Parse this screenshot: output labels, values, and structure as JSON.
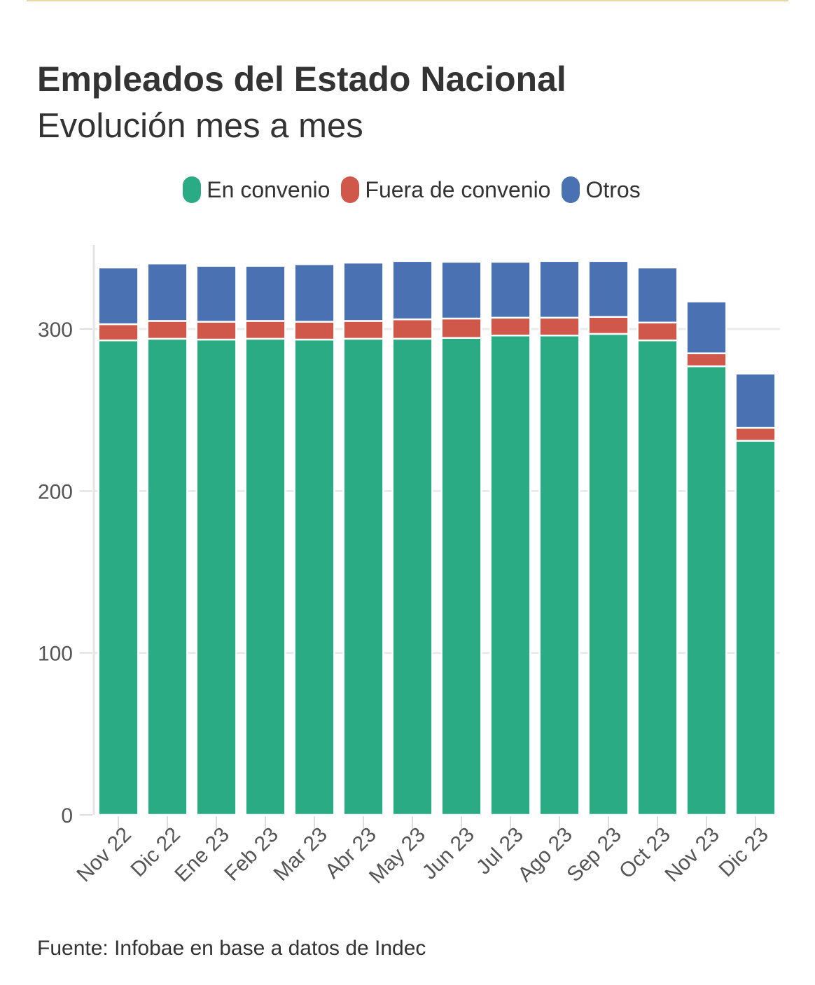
{
  "header": {
    "title": "Empleados del Estado Nacional",
    "subtitle": "Evolución mes a mes"
  },
  "legend": [
    {
      "label": "En convenio",
      "color": "#2aab84"
    },
    {
      "label": "Fuera de convenio",
      "color": "#d0584a"
    },
    {
      "label": "Otros",
      "color": "#4a72b2"
    }
  ],
  "source": "Fuente: Infobae en base a datos de Indec",
  "chart_data": {
    "type": "bar",
    "stacked": true,
    "title": "Empleados del Estado Nacional",
    "subtitle": "Evolución mes a mes",
    "xlabel": "",
    "ylabel": "",
    "ylim": [
      0,
      350
    ],
    "yticks": [
      0,
      100,
      200,
      300
    ],
    "grid": true,
    "legend_position": "top-center",
    "categories": [
      "Nov 22",
      "Dic 22",
      "Ene 23",
      "Feb 23",
      "Mar 23",
      "Abr 23",
      "May 23",
      "Jun 23",
      "Jul 23",
      "Ago 23",
      "Sep 23",
      "Oct 23",
      "Nov 23",
      "Dic 23"
    ],
    "series": [
      {
        "name": "En convenio",
        "color": "#2aab84",
        "values": [
          293,
          294,
          293.5,
          294,
          293.5,
          294,
          294,
          294.5,
          296,
          296,
          297,
          293,
          277,
          231
        ]
      },
      {
        "name": "Fuera de convenio",
        "color": "#d0584a",
        "values": [
          10,
          11,
          11,
          11,
          11,
          11,
          12,
          12,
          11,
          11,
          10.5,
          11,
          8,
          8
        ]
      },
      {
        "name": "Otros",
        "color": "#4a72b2",
        "values": [
          35,
          35.5,
          34.5,
          34,
          35.5,
          36,
          36,
          35,
          34.5,
          35,
          34.5,
          34,
          32,
          33.5
        ]
      }
    ]
  }
}
